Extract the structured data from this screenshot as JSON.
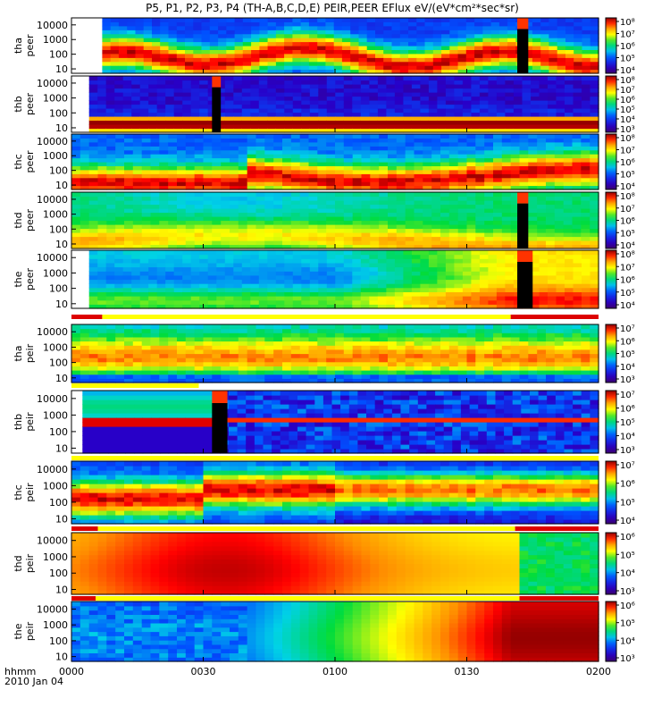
{
  "chart_data": {
    "type": "heatmap",
    "title": "P5, P1, P2, P3, P4 (TH-A,B,C,D,E) PEIR,PEER EFlux eV/(eV*cm²*sec*sr)",
    "x_axis": {
      "label_line1": "hhmm",
      "label_line2": "2010 Jan 04",
      "ticks": [
        "0000",
        "0030",
        "0100",
        "0130",
        "0200"
      ],
      "tick_minutes": [
        0,
        30,
        60,
        90,
        120
      ],
      "range_minutes": [
        0,
        120
      ]
    },
    "y_axis": {
      "scale": "log",
      "ticks": [
        "10",
        "100",
        "1000",
        "10000"
      ],
      "tick_values": [
        10,
        100,
        1000,
        10000
      ],
      "range": [
        5,
        30000
      ]
    },
    "panels": [
      {
        "probe": "tha",
        "species": "peer",
        "ylabel1": "tha",
        "ylabel2": "peer",
        "cbar_exp": [
          4,
          5,
          6,
          7,
          8
        ],
        "cbar_labels": [
          "10⁴",
          "10⁵",
          "10⁶",
          "10⁷",
          "10⁸"
        ],
        "fill_minutes": [
          0,
          7,
          120
        ],
        "data_gaps_minutes": [
          [
            101.5,
            104
          ]
        ]
      },
      {
        "probe": "thb",
        "species": "peer",
        "ylabel1": "thb",
        "ylabel2": "peer",
        "cbar_exp": [
          3,
          4,
          5,
          6,
          7,
          8
        ],
        "cbar_labels": [
          "10³",
          "10⁴",
          "10⁵",
          "10⁶",
          "10⁷",
          "10⁸"
        ],
        "fill_minutes": [
          0,
          4,
          120
        ],
        "data_gaps_minutes": [
          [
            32,
            34
          ]
        ]
      },
      {
        "probe": "thc",
        "species": "peer",
        "ylabel1": "thc",
        "ylabel2": "peer",
        "cbar_exp": [
          4,
          5,
          6,
          7,
          8
        ],
        "cbar_labels": [
          "10⁴",
          "10⁵",
          "10⁶",
          "10⁷",
          "10⁸"
        ],
        "fill_minutes": [
          0,
          0,
          120
        ],
        "data_gaps_minutes": []
      },
      {
        "probe": "thd",
        "species": "peer",
        "ylabel1": "thd",
        "ylabel2": "peer",
        "cbar_exp": [
          4,
          5,
          6,
          7,
          8
        ],
        "cbar_labels": [
          "10⁴",
          "10⁵",
          "10⁶",
          "10⁷",
          "10⁸"
        ],
        "fill_minutes": [
          0,
          0,
          120
        ],
        "data_gaps_minutes": [
          [
            101.5,
            104
          ]
        ]
      },
      {
        "probe": "the",
        "species": "peer",
        "ylabel1": "the",
        "ylabel2": "peer",
        "cbar_exp": [
          4,
          5,
          6,
          7,
          8
        ],
        "cbar_labels": [
          "10⁴",
          "10⁵",
          "10⁶",
          "10⁷",
          "10⁸"
        ],
        "fill_minutes": [
          0,
          4,
          120
        ],
        "data_gaps_minutes": [
          [
            101.5,
            105
          ]
        ]
      },
      {
        "probe": "tha",
        "species": "peir",
        "ylabel1": "tha",
        "ylabel2": "peir",
        "cbar_exp": [
          3,
          4,
          5,
          6,
          7
        ],
        "cbar_labels": [
          "10³",
          "10⁴",
          "10⁵",
          "10⁶",
          "10⁷"
        ],
        "fill_minutes": [
          0,
          0,
          120
        ],
        "data_gaps_minutes": []
      },
      {
        "probe": "thb",
        "species": "peir",
        "ylabel1": "thb",
        "ylabel2": "peir",
        "cbar_exp": [
          3,
          4,
          5,
          6,
          7
        ],
        "cbar_labels": [
          "10³",
          "10⁴",
          "10⁵",
          "10⁶",
          "10⁷"
        ],
        "fill_minutes": [
          0,
          2.5,
          120
        ],
        "data_gaps_minutes": [
          [
            32,
            35.5
          ]
        ]
      },
      {
        "probe": "thc",
        "species": "peir",
        "ylabel1": "thc",
        "ylabel2": "peir",
        "cbar_exp": [
          4,
          5,
          6,
          7
        ],
        "cbar_labels": [
          "10⁴",
          "10⁵",
          "10⁶",
          "10⁷"
        ],
        "fill_minutes": [
          0,
          0,
          120
        ],
        "data_gaps_minutes": []
      },
      {
        "probe": "thd",
        "species": "peir",
        "ylabel1": "thd",
        "ylabel2": "peir",
        "cbar_exp": [
          3,
          4,
          5,
          6
        ],
        "cbar_labels": [
          "10³",
          "10⁴",
          "10⁵",
          "10⁶"
        ],
        "fill_minutes": [
          0,
          0,
          120
        ],
        "data_gaps_minutes": []
      },
      {
        "probe": "the",
        "species": "peir",
        "ylabel1": "the",
        "ylabel2": "peir",
        "cbar_exp": [
          3,
          4,
          5,
          6
        ],
        "cbar_labels": [
          "10³",
          "10⁴",
          "10⁵",
          "10⁶"
        ],
        "fill_minutes": [
          0,
          0,
          120
        ],
        "data_gaps_minutes": []
      }
    ],
    "status_bars": [
      {
        "after_panel": 4,
        "segments": [
          {
            "color": "#dd0000",
            "x": [
              0,
              7
            ]
          },
          {
            "color": "#ffff00",
            "x": [
              7,
              100
            ]
          },
          {
            "color": "#dd0000",
            "x": [
              100,
              120
            ]
          }
        ]
      },
      {
        "after_panel": 5,
        "segments": [
          {
            "color": "#ffff00",
            "x": [
              0,
              29
            ]
          },
          {
            "color": "#ffffff",
            "x": [
              29,
              120
            ]
          }
        ]
      },
      {
        "after_panel": 6,
        "segments": [
          {
            "color": "#ffff00",
            "x": [
              0,
              120
            ]
          }
        ]
      },
      {
        "after_panel": 7,
        "segments": [
          {
            "color": "#dd0000",
            "x": [
              0,
              6
            ]
          },
          {
            "color": "#ffff00",
            "x": [
              6,
              101
            ]
          },
          {
            "color": "#dd0000",
            "x": [
              101,
              120
            ]
          }
        ]
      },
      {
        "after_panel": 8,
        "segments": [
          {
            "color": "#dd0000",
            "x": [
              0,
              5.5
            ]
          },
          {
            "color": "#ffff00",
            "x": [
              5.5,
              102
            ]
          },
          {
            "color": "#dd0000",
            "x": [
              102,
              120
            ]
          }
        ]
      }
    ]
  }
}
